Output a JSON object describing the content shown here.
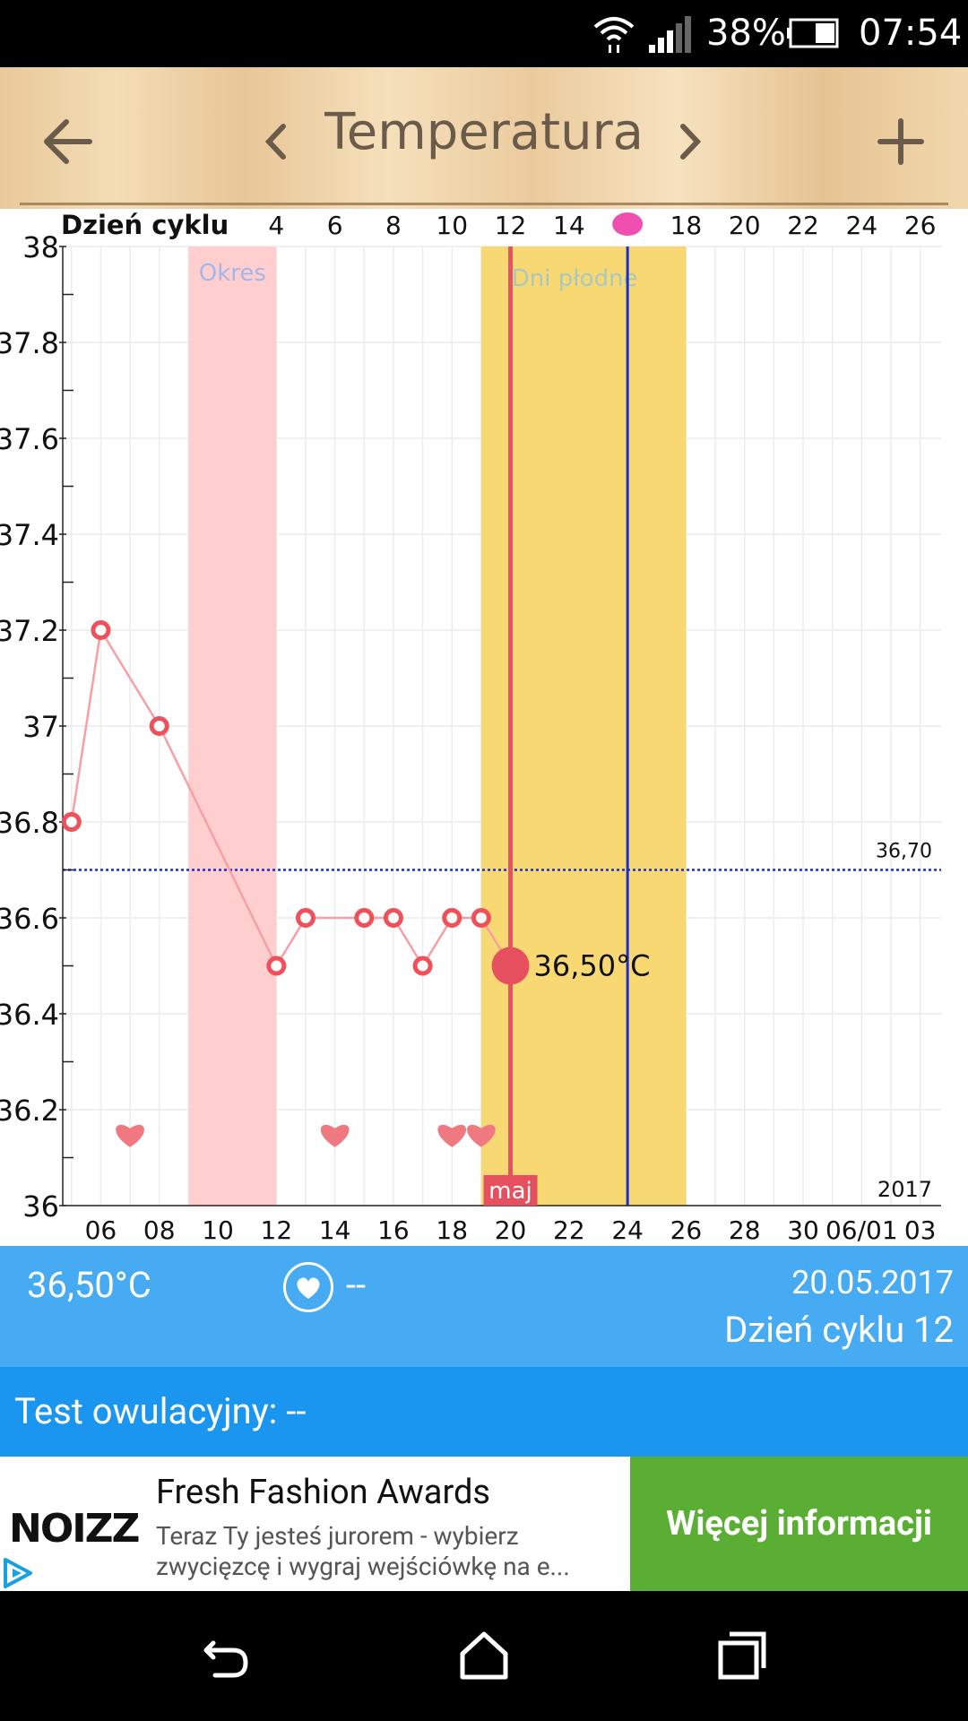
{
  "status_bar": {
    "battery_percent": "38%",
    "time": "07:54",
    "icons": [
      "wifi-icon",
      "signal-icon",
      "battery-icon"
    ]
  },
  "header": {
    "title": "Temperatura",
    "back_icon": "arrow-left-icon",
    "prev_icon": "chevron-left-icon",
    "next_icon": "chevron-right-icon",
    "add_icon": "plus-icon"
  },
  "chart_data": {
    "type": "line",
    "cycle_axis": {
      "label": "Dzień cyklu",
      "ticks": [
        "4",
        "6",
        "8",
        "10",
        "12",
        "14",
        "",
        "18",
        "20",
        "22",
        "24",
        "26"
      ],
      "ovulation_marker_day": "16"
    },
    "y_ticks": [
      "38",
      "37.8",
      "37.6",
      "37.4",
      "37.2",
      "37",
      "36.8",
      "36.6",
      "36.4",
      "36.2",
      "36"
    ],
    "ylim": [
      36,
      38
    ],
    "x_ticks": [
      "06",
      "08",
      "10",
      "12",
      "14",
      "16",
      "18",
      "20",
      "22",
      "24",
      "26",
      "28",
      "30",
      "06/01",
      "03"
    ],
    "series": [
      {
        "points": [
          {
            "date": "05-05",
            "value": 36.8
          },
          {
            "date": "05-06",
            "value": 37.2
          },
          {
            "date": "05-08",
            "value": 37.0
          },
          {
            "date": "05-12",
            "value": 36.5
          },
          {
            "date": "05-13",
            "value": 36.6
          },
          {
            "date": "05-15",
            "value": 36.6
          },
          {
            "date": "05-16",
            "value": 36.6
          },
          {
            "date": "05-17",
            "value": 36.5
          },
          {
            "date": "05-18",
            "value": 36.6
          },
          {
            "date": "05-19",
            "value": 36.6
          },
          {
            "date": "05-20",
            "value": 36.5
          }
        ]
      }
    ],
    "coverline": {
      "value": 36.7,
      "label": "36,70"
    },
    "period_range": {
      "label": "Okres",
      "from": "05-09",
      "to": "05-12"
    },
    "fertile_range": {
      "label": "Dni płodne",
      "from": "05-19",
      "to": "05-26"
    },
    "ovulation_line_date": "05-24",
    "selected": {
      "date": "05-20",
      "value": 36.5,
      "label": "36,50°C",
      "month_label": "maj"
    },
    "intercourse_days": [
      "05-07",
      "05-14",
      "05-18",
      "05-19"
    ],
    "year_label": "2017",
    "grid": true
  },
  "info": {
    "temperature": "36,50°C",
    "heart_value": "--",
    "date": "20.05.2017",
    "cycle_day": "Dzień cyklu 12"
  },
  "ovulation_test": {
    "text": "Test owulacyjny: --"
  },
  "ad": {
    "logo": "NOIZZ",
    "title": "Fresh Fashion Awards",
    "text": "Teraz Ty jesteś jurorem - wybierz zwycięzcę i wygraj wejściówkę na e...",
    "button": "Więcej informacji"
  },
  "colors": {
    "info_blue": "#47abf4",
    "ovul_blue": "#1a96f0",
    "ad_green": "#5aae33",
    "period_pink": "#ffcfd0",
    "fertile_yellow": "#f8d872",
    "line_red": "#f0505a",
    "coverline_blue": "#1a2fcf"
  }
}
